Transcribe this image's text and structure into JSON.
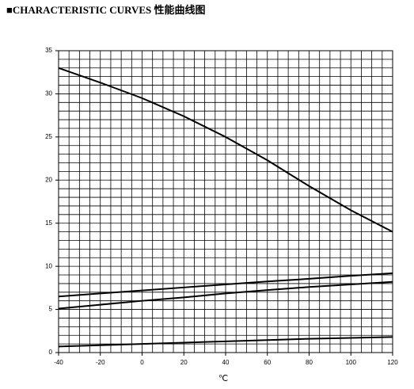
{
  "chart_data": {
    "type": "line",
    "title": "■CHARACTERISTIC CURVES 性能曲线图",
    "x_label": "℃",
    "x": [
      -40,
      -20,
      0,
      20,
      40,
      60,
      80,
      100,
      120
    ],
    "series": [
      {
        "color": "#000000",
        "values": [
          33,
          31.3,
          29.5,
          27.4,
          25,
          22.3,
          19.3,
          16.5,
          14
        ]
      },
      {
        "color": "#000000",
        "values": [
          6.5,
          6.85,
          7.2,
          7.55,
          7.9,
          8.25,
          8.55,
          8.9,
          9.2
        ]
      },
      {
        "color": "#000000",
        "values": [
          5.1,
          5.55,
          6.0,
          6.4,
          6.85,
          7.25,
          7.6,
          7.9,
          8.2
        ]
      },
      {
        "color": "#000000",
        "values": [
          0.7,
          0.85,
          1.0,
          1.15,
          1.3,
          1.45,
          1.6,
          1.7,
          1.8
        ]
      }
    ],
    "xlim": [
      -40,
      120
    ],
    "xticks": [
      -40,
      -20,
      0,
      20,
      40,
      60,
      80,
      100,
      120
    ],
    "ylim": [
      0,
      35
    ],
    "yticks": [
      0,
      5,
      10,
      15,
      20,
      25,
      30,
      35
    ],
    "grid": true,
    "minor_grid": {
      "x": 5,
      "y": 1
    }
  }
}
